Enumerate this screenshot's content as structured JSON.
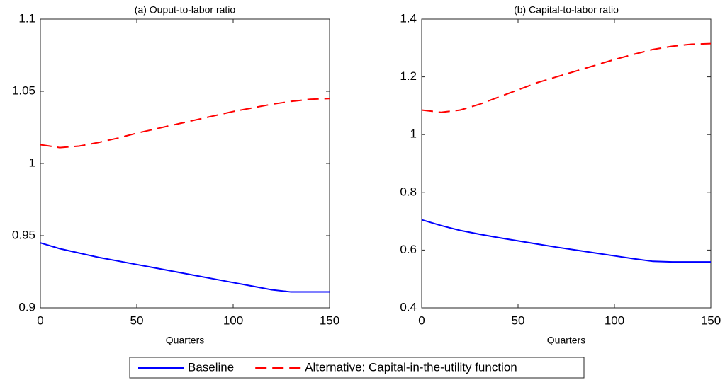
{
  "chart_data": [
    {
      "type": "line",
      "title": "(a) Ouput-to-labor ratio",
      "x_label": "Quarters",
      "x": [
        0,
        10,
        20,
        30,
        40,
        50,
        60,
        70,
        80,
        90,
        100,
        110,
        120,
        130,
        140,
        150
      ],
      "xlim": [
        0,
        150
      ],
      "xticks": [
        0,
        50,
        100,
        150
      ],
      "ylim": [
        0.9,
        1.1
      ],
      "yticks": [
        0.9,
        0.95,
        1,
        1.05,
        1.1
      ],
      "series": [
        {
          "name": "Baseline",
          "color": "#0000ff",
          "line_style": "solid",
          "values": [
            0.945,
            0.941,
            0.938,
            0.935,
            0.9325,
            0.93,
            0.9275,
            0.925,
            0.9225,
            0.92,
            0.9175,
            0.915,
            0.9125,
            0.911,
            0.911,
            0.911
          ]
        },
        {
          "name": "Alternative: Capital-in-the-utility function",
          "color": "#ff0000",
          "line_style": "dashed",
          "values": [
            1.013,
            1.011,
            1.012,
            1.0145,
            1.0175,
            1.021,
            1.024,
            1.027,
            1.03,
            1.033,
            1.036,
            1.0385,
            1.041,
            1.043,
            1.0445,
            1.045
          ]
        }
      ]
    },
    {
      "type": "line",
      "title": "(b) Capital-to-labor ratio",
      "x_label": "Quarters",
      "x": [
        0,
        10,
        20,
        30,
        40,
        50,
        60,
        70,
        80,
        90,
        100,
        110,
        120,
        130,
        140,
        150
      ],
      "xlim": [
        0,
        150
      ],
      "xticks": [
        0,
        50,
        100,
        150
      ],
      "ylim": [
        0.4,
        1.4
      ],
      "yticks": [
        0.4,
        0.6,
        0.8,
        1,
        1.2,
        1.4
      ],
      "series": [
        {
          "color": "#0000ff",
          "line_style": "solid",
          "values": [
            0.705,
            0.685,
            0.668,
            0.655,
            0.643,
            0.632,
            0.621,
            0.61,
            0.6,
            0.59,
            0.58,
            0.57,
            0.561,
            0.559,
            0.559,
            0.559
          ]
        },
        {
          "color": "#ff0000",
          "line_style": "dashed",
          "values": [
            1.085,
            1.077,
            1.085,
            1.105,
            1.13,
            1.155,
            1.18,
            1.2,
            1.22,
            1.24,
            1.26,
            1.278,
            1.295,
            1.306,
            1.313,
            1.315
          ]
        }
      ]
    }
  ]
}
